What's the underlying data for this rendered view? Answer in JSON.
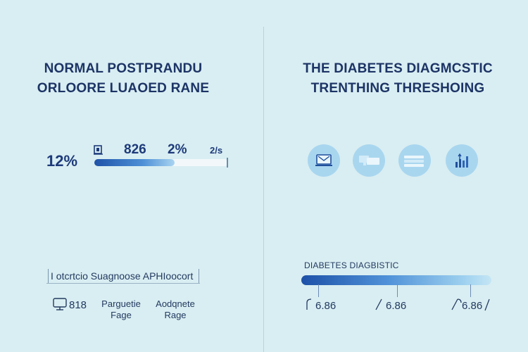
{
  "left_panel": {
    "title_line1": "NORMAL POSTPRANDU",
    "title_line2": "ORLOORE LUAOED RANE",
    "stat_main": "12%",
    "stat_2": "826",
    "stat_3": "2%",
    "stat_4": "2/s",
    "range_bar_fill": 0.6,
    "legend": "I otcrtcio Suagnoose APHIoocort",
    "items": [
      {
        "label": "818",
        "icon": "monitor-icon"
      },
      {
        "label_line1": "Parguetie",
        "label_line2": "Fage"
      },
      {
        "label_line1": "Aodqnete",
        "label_line2": "Rage"
      }
    ]
  },
  "right_panel": {
    "title_line1": "THE DIABETES DIAGMCSTIC",
    "title_line2": "TRENTHING THRESHOING",
    "icons": [
      "laptop-icon",
      "devices-icon",
      "document-stack-icon",
      "bar-chart-icon"
    ],
    "scale_title": "DIABETES DIAGBISTIC",
    "scale_values": [
      "6.86",
      "6.86",
      "6.86"
    ]
  },
  "colors": {
    "background": "#d9eef2",
    "title": "#1d3466",
    "accent": "#1f53a8",
    "circle": "#a9d6ef"
  }
}
